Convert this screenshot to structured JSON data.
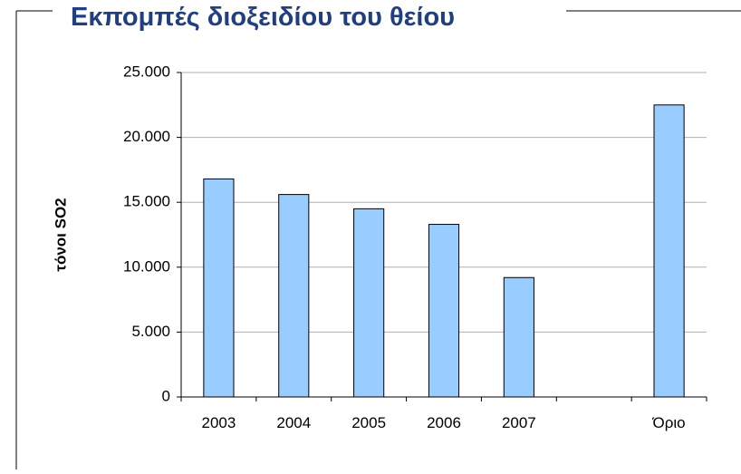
{
  "chart_data": {
    "type": "bar",
    "title": "Εκπομπές διοξειδίου του θείου",
    "y_label": "τόνοι SO2",
    "categories": [
      "2003",
      "2004",
      "2005",
      "2006",
      "2007",
      null,
      "Όριο"
    ],
    "values": [
      16800,
      15600,
      14500,
      13300,
      9200,
      null,
      22500
    ],
    "color": "#99ccff",
    "ylim": [
      0,
      25000
    ],
    "yticks": [
      0,
      {
        "value": 5000,
        "label": "5.000"
      },
      {
        "value": 10000,
        "label": "10.000"
      },
      {
        "value": 15000,
        "label": "15.000"
      },
      {
        "value": 20000,
        "label": "20.000"
      },
      {
        "value": 25000,
        "label": "25.000"
      }
    ],
    "grid": true
  }
}
